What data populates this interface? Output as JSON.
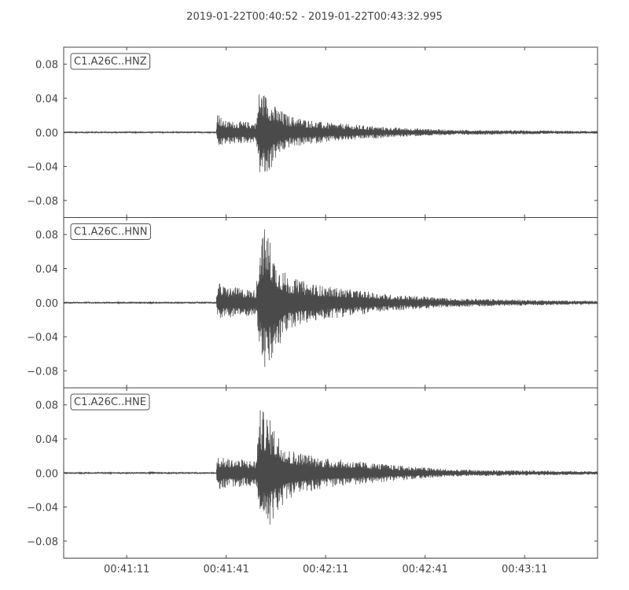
{
  "title": "2019-01-22T00:40:52  -  2019-01-22T00:43:32.995",
  "chart_data": {
    "type": "line",
    "title": "2019-01-22T00:40:52  -  2019-01-22T00:43:32.995",
    "xlim": [
      "00:40:52",
      "00:43:32.995"
    ],
    "ylim": [
      -0.1,
      0.1
    ],
    "grid": false,
    "x_ticks": [
      "00:41:11",
      "00:41:41",
      "00:42:11",
      "00:42:41",
      "00:43:11"
    ],
    "y_ticks": [
      0.08,
      0.04,
      0.0,
      -0.04,
      -0.08
    ],
    "y_tick_labels": [
      "0.08",
      "0.04",
      "0.00",
      "−0.04",
      "−0.08"
    ],
    "line_color": "#4a4a4a",
    "note_envelope_format": "time, max amplitude, min amplitude",
    "series": [
      {
        "name": "C1.A26C..HNZ",
        "envelope": [
          [
            "00:40:52",
            0.001,
            -0.001
          ],
          [
            "00:41:38",
            0.001,
            -0.001
          ],
          [
            "00:41:38.3",
            0.028,
            -0.022
          ],
          [
            "00:41:40",
            0.014,
            -0.015
          ],
          [
            "00:41:50",
            0.012,
            -0.012
          ],
          [
            "00:41:51",
            0.052,
            -0.05
          ],
          [
            "00:41:53",
            0.045,
            -0.057
          ],
          [
            "00:41:56",
            0.03,
            -0.03
          ],
          [
            "00:42:00",
            0.02,
            -0.018
          ],
          [
            "00:42:10",
            0.012,
            -0.012
          ],
          [
            "00:42:30",
            0.006,
            -0.006
          ],
          [
            "00:42:50",
            0.003,
            -0.003
          ],
          [
            "00:43:32.995",
            0.0015,
            -0.0015
          ]
        ]
      },
      {
        "name": "C1.A26C..HNN",
        "envelope": [
          [
            "00:40:52",
            0.001,
            -0.001
          ],
          [
            "00:41:17",
            0.001,
            -0.001
          ],
          [
            "00:41:18",
            0.002,
            -0.002
          ],
          [
            "00:41:20",
            0.001,
            -0.001
          ],
          [
            "00:41:38",
            0.001,
            -0.001
          ],
          [
            "00:41:38.3",
            0.026,
            -0.02
          ],
          [
            "00:41:40",
            0.02,
            -0.018
          ],
          [
            "00:41:50",
            0.015,
            -0.015
          ],
          [
            "00:41:51",
            0.075,
            -0.05
          ],
          [
            "00:41:53",
            0.092,
            -0.09
          ],
          [
            "00:41:56",
            0.05,
            -0.06
          ],
          [
            "00:42:00",
            0.03,
            -0.03
          ],
          [
            "00:42:10",
            0.02,
            -0.02
          ],
          [
            "00:42:30",
            0.01,
            -0.01
          ],
          [
            "00:42:50",
            0.005,
            -0.005
          ],
          [
            "00:43:32.995",
            0.002,
            -0.002
          ]
        ]
      },
      {
        "name": "C1.A26C..HNE",
        "envelope": [
          [
            "00:40:52",
            0.001,
            -0.001
          ],
          [
            "00:41:17",
            0.001,
            -0.001
          ],
          [
            "00:41:18",
            0.002,
            -0.002
          ],
          [
            "00:41:20",
            0.001,
            -0.001
          ],
          [
            "00:41:38",
            0.001,
            -0.001
          ],
          [
            "00:41:38.3",
            0.02,
            -0.02
          ],
          [
            "00:41:40",
            0.018,
            -0.018
          ],
          [
            "00:41:50",
            0.015,
            -0.015
          ],
          [
            "00:41:51",
            0.075,
            -0.05
          ],
          [
            "00:41:53",
            0.072,
            -0.068
          ],
          [
            "00:41:56",
            0.05,
            -0.05
          ],
          [
            "00:42:00",
            0.028,
            -0.03
          ],
          [
            "00:42:10",
            0.018,
            -0.018
          ],
          [
            "00:42:30",
            0.01,
            -0.01
          ],
          [
            "00:42:50",
            0.004,
            -0.004
          ],
          [
            "00:43:32.995",
            0.002,
            -0.002
          ]
        ]
      }
    ]
  }
}
